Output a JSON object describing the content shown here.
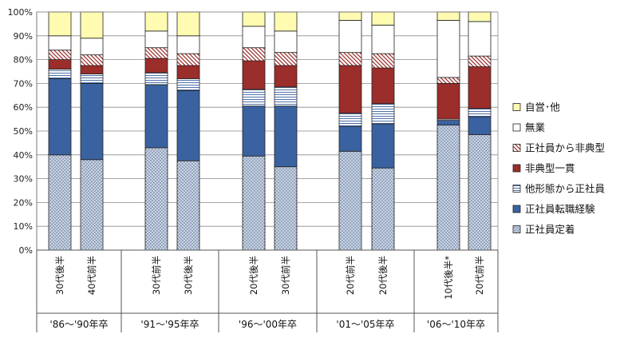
{
  "chart_data": {
    "type": "bar",
    "stacked": true,
    "title": "",
    "xlabel": "",
    "ylabel": "",
    "ylim": [
      0,
      100
    ],
    "y_ticks": [
      "0%",
      "10%",
      "20%",
      "30%",
      "40%",
      "50%",
      "60%",
      "70%",
      "80%",
      "90%",
      "100%"
    ],
    "grid": true,
    "legend_position": "right",
    "groups": [
      {
        "label": "'86〜'90年卒",
        "categories": [
          "30代後半",
          "40代前半"
        ]
      },
      {
        "label": "'91〜'95年卒",
        "categories": [
          "30代前半",
          "30代後半"
        ]
      },
      {
        "label": "'96〜'00年卒",
        "categories": [
          "20代後半",
          "30代前半"
        ]
      },
      {
        "label": "'01〜'05年卒",
        "categories": [
          "20代前半",
          "20代後半"
        ]
      },
      {
        "label": "'06〜'10年卒",
        "categories": [
          "10代後半*",
          "20代前半"
        ]
      }
    ],
    "series": [
      {
        "name": "正社員定着",
        "color": "#c7d3e6",
        "values": [
          40,
          38,
          43,
          37.5,
          39.5,
          35,
          41.5,
          34.5,
          52.5,
          48.5
        ]
      },
      {
        "name": "正社員転職経験",
        "color": "#3a62a0",
        "values": [
          32,
          32,
          26.5,
          29.5,
          21,
          25.5,
          10.5,
          18.5,
          2,
          7.5
        ]
      },
      {
        "name": "他形態から正社員",
        "color": "#ffffff",
        "values": [
          4,
          4,
          5,
          5,
          7,
          8,
          5.5,
          8.5,
          0.5,
          3.5
        ]
      },
      {
        "name": "非典型一貫",
        "color": "#9b2d2a",
        "values": [
          4,
          3.5,
          6,
          5.5,
          12,
          9,
          20,
          15,
          15,
          17.5
        ]
      },
      {
        "name": "正社員から非典型",
        "color": "#ffffff",
        "values": [
          4,
          4.5,
          4.5,
          5,
          5.5,
          5.5,
          5.5,
          6,
          2.5,
          4.5
        ]
      },
      {
        "name": "無業",
        "color": "#ffffff",
        "values": [
          6,
          7,
          7,
          7.5,
          9,
          9,
          13.5,
          12,
          24,
          14.5
        ]
      },
      {
        "name": "自営･他",
        "color": "#fffbb0",
        "values": [
          10,
          11,
          8,
          10,
          6,
          8,
          3.5,
          5.5,
          3.5,
          4
        ]
      }
    ]
  }
}
